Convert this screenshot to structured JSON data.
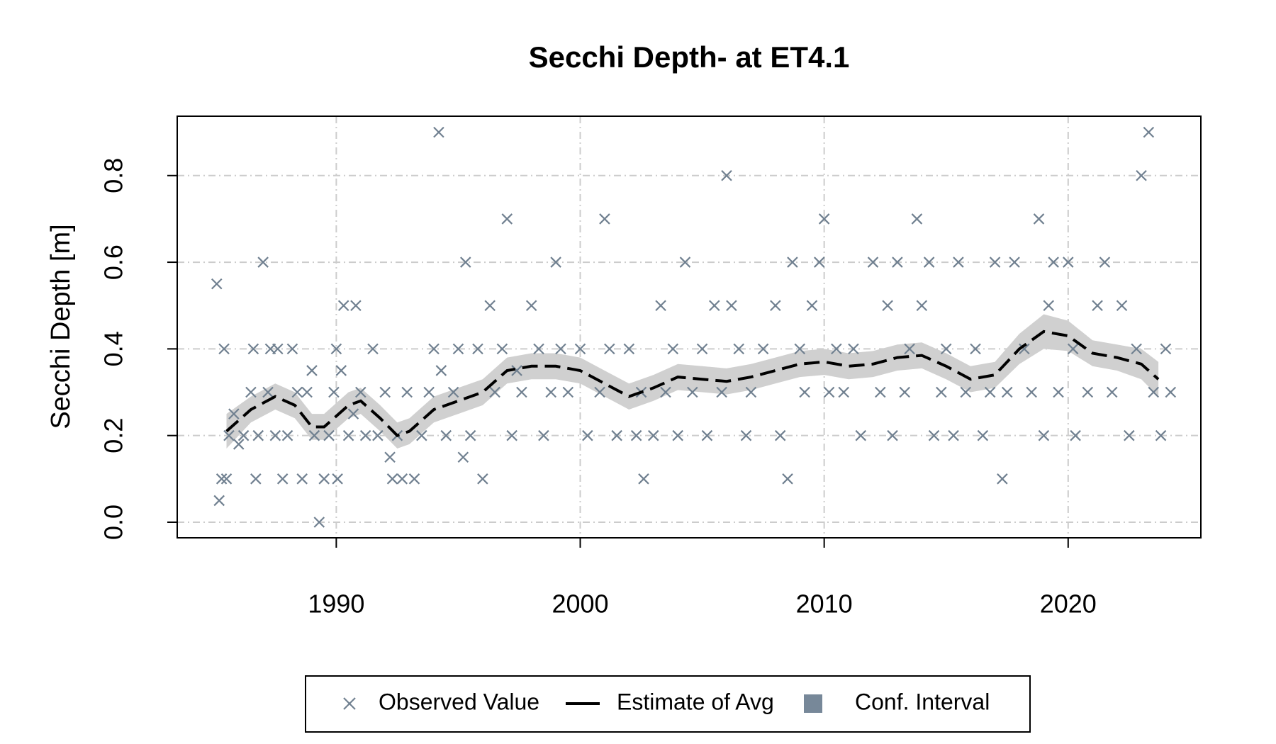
{
  "chart_data": {
    "type": "scatter",
    "title": "Secchi Depth- at ET4.1",
    "y_label": "Secchi Depth [m]",
    "xlim": [
      1983.48,
      2025.44
    ],
    "ylim": [
      -0.036,
      0.937
    ],
    "xticks": [
      1990,
      2000,
      2010,
      2020
    ],
    "yticks": [
      {
        "value": 0,
        "label": "0.0"
      },
      0.2,
      0.4,
      0.6,
      0.8
    ],
    "grid": true,
    "legend_position": "bottom",
    "series": [
      {
        "name": "Observed Value",
        "color": "#708090",
        "x": [
          1985.1,
          1985.2,
          1985.3,
          1985.4,
          1985.5,
          1985.6,
          1985.8,
          1986.0,
          1986.2,
          1986.5,
          1986.6,
          1986.7,
          1986.8,
          1987.0,
          1987.2,
          1987.3,
          1987.5,
          1987.6,
          1987.8,
          1988.0,
          1988.2,
          1988.4,
          1988.6,
          1988.8,
          1989.0,
          1989.1,
          1989.3,
          1989.5,
          1989.7,
          1989.9,
          1990.0,
          1990.05,
          1990.2,
          1990.3,
          1990.5,
          1990.7,
          1990.8,
          1991.0,
          1991.2,
          1991.5,
          1991.7,
          1992.0,
          1992.2,
          1992.3,
          1992.5,
          1992.7,
          1992.9,
          1993.2,
          1993.5,
          1993.8,
          1994.0,
          1994.2,
          1994.3,
          1994.5,
          1994.8,
          1995.0,
          1995.2,
          1995.3,
          1995.5,
          1995.8,
          1996.0,
          1996.3,
          1996.5,
          1996.8,
          1997.0,
          1997.2,
          1997.4,
          1997.6,
          1998.0,
          1998.3,
          1998.5,
          1998.8,
          1999.0,
          1999.2,
          1999.5,
          2000.0,
          2000.3,
          2000.8,
          2001.0,
          2001.2,
          2001.5,
          2002.0,
          2002.3,
          2002.5,
          2002.6,
          2003.0,
          2003.3,
          2003.5,
          2003.8,
          2004.0,
          2004.3,
          2004.6,
          2005.0,
          2005.2,
          2005.5,
          2005.8,
          2006.0,
          2006.2,
          2006.5,
          2006.8,
          2007.0,
          2007.5,
          2008.0,
          2008.2,
          2008.5,
          2008.7,
          2009.0,
          2009.2,
          2009.5,
          2009.8,
          2010.0,
          2010.2,
          2010.5,
          2010.8,
          2011.2,
          2011.5,
          2012.0,
          2012.3,
          2012.6,
          2012.8,
          2013.0,
          2013.3,
          2013.5,
          2013.8,
          2014.0,
          2014.3,
          2014.5,
          2014.8,
          2015.0,
          2015.3,
          2015.5,
          2015.8,
          2016.2,
          2016.5,
          2016.8,
          2017.0,
          2017.3,
          2017.5,
          2017.8,
          2018.2,
          2018.5,
          2018.8,
          2019.0,
          2019.2,
          2019.4,
          2019.6,
          2020.0,
          2020.2,
          2020.3,
          2020.8,
          2021.2,
          2021.5,
          2021.8,
          2022.2,
          2022.5,
          2022.8,
          2023.0,
          2023.3,
          2023.5,
          2023.8,
          2024.0,
          2024.2
        ],
        "values": [
          0.55,
          0.05,
          0.1,
          0.4,
          0.1,
          0.2,
          0.25,
          0.18,
          0.2,
          0.3,
          0.4,
          0.1,
          0.2,
          0.6,
          0.3,
          0.4,
          0.2,
          0.4,
          0.1,
          0.2,
          0.4,
          0.3,
          0.1,
          0.3,
          0.35,
          0.2,
          0.0,
          0.1,
          0.2,
          0.3,
          0.4,
          0.1,
          0.35,
          0.5,
          0.2,
          0.25,
          0.5,
          0.3,
          0.2,
          0.4,
          0.2,
          0.3,
          0.15,
          0.1,
          0.2,
          0.1,
          0.3,
          0.1,
          0.2,
          0.3,
          0.4,
          0.9,
          0.35,
          0.2,
          0.3,
          0.4,
          0.15,
          0.6,
          0.2,
          0.4,
          0.1,
          0.5,
          0.3,
          0.4,
          0.7,
          0.2,
          0.35,
          0.3,
          0.5,
          0.4,
          0.2,
          0.3,
          0.6,
          0.4,
          0.3,
          0.4,
          0.2,
          0.3,
          0.7,
          0.4,
          0.2,
          0.4,
          0.2,
          0.3,
          0.1,
          0.2,
          0.5,
          0.3,
          0.4,
          0.2,
          0.6,
          0.3,
          0.4,
          0.2,
          0.5,
          0.3,
          0.8,
          0.5,
          0.4,
          0.2,
          0.3,
          0.4,
          0.5,
          0.2,
          0.1,
          0.6,
          0.4,
          0.3,
          0.5,
          0.6,
          0.7,
          0.3,
          0.4,
          0.3,
          0.4,
          0.2,
          0.6,
          0.3,
          0.5,
          0.2,
          0.6,
          0.3,
          0.4,
          0.7,
          0.5,
          0.6,
          0.2,
          0.3,
          0.4,
          0.2,
          0.6,
          0.3,
          0.4,
          0.2,
          0.3,
          0.6,
          0.1,
          0.3,
          0.6,
          0.4,
          0.3,
          0.7,
          0.2,
          0.5,
          0.6,
          0.3,
          0.6,
          0.4,
          0.2,
          0.3,
          0.5,
          0.6,
          0.3,
          0.5,
          0.2,
          0.4,
          0.8,
          0.9,
          0.3,
          0.2,
          0.4,
          0.3
        ]
      },
      {
        "name": "Estimate of Avg",
        "color": "#000000",
        "x": [
          1985.5,
          1986.5,
          1987.5,
          1988.3,
          1989.0,
          1989.5,
          1990.5,
          1991.0,
          1991.8,
          1992.5,
          1993.0,
          1994.0,
          1995.0,
          1996.0,
          1997.0,
          1998.0,
          1999.0,
          2000.0,
          2001.0,
          2002.0,
          2003.0,
          2004.0,
          2005.0,
          2006.0,
          2007.0,
          2008.0,
          2009.0,
          2010.0,
          2011.0,
          2012.0,
          2013.0,
          2014.0,
          2015.0,
          2016.0,
          2017.0,
          2018.0,
          2019.0,
          2020.0,
          2021.0,
          2022.0,
          2023.0,
          2023.7
        ],
        "values": [
          0.21,
          0.26,
          0.29,
          0.27,
          0.22,
          0.22,
          0.27,
          0.28,
          0.24,
          0.2,
          0.21,
          0.26,
          0.28,
          0.3,
          0.35,
          0.36,
          0.36,
          0.35,
          0.32,
          0.29,
          0.31,
          0.335,
          0.33,
          0.325,
          0.335,
          0.35,
          0.365,
          0.37,
          0.36,
          0.365,
          0.38,
          0.385,
          0.36,
          0.33,
          0.34,
          0.4,
          0.44,
          0.43,
          0.39,
          0.38,
          0.365,
          0.33
        ]
      },
      {
        "name": "Conf. Interval",
        "color": "#d0d0d0",
        "legend_color": "#778899",
        "x": [
          1985.5,
          1986.5,
          1987.5,
          1988.3,
          1989.0,
          1989.5,
          1990.5,
          1991.0,
          1991.8,
          1992.5,
          1993.0,
          1994.0,
          1995.0,
          1996.0,
          1997.0,
          1998.0,
          1999.0,
          2000.0,
          2001.0,
          2002.0,
          2003.0,
          2004.0,
          2005.0,
          2006.0,
          2007.0,
          2008.0,
          2009.0,
          2010.0,
          2011.0,
          2012.0,
          2013.0,
          2014.0,
          2015.0,
          2016.0,
          2017.0,
          2018.0,
          2019.0,
          2020.0,
          2021.0,
          2022.0,
          2023.0,
          2023.7
        ],
        "lower": [
          0.17,
          0.23,
          0.26,
          0.24,
          0.19,
          0.19,
          0.24,
          0.25,
          0.21,
          0.17,
          0.18,
          0.23,
          0.25,
          0.27,
          0.32,
          0.33,
          0.33,
          0.32,
          0.29,
          0.26,
          0.28,
          0.305,
          0.3,
          0.295,
          0.305,
          0.32,
          0.335,
          0.34,
          0.33,
          0.335,
          0.35,
          0.355,
          0.33,
          0.3,
          0.31,
          0.365,
          0.4,
          0.395,
          0.36,
          0.35,
          0.33,
          0.29
        ],
        "upper": [
          0.25,
          0.29,
          0.32,
          0.3,
          0.25,
          0.25,
          0.3,
          0.31,
          0.27,
          0.23,
          0.24,
          0.29,
          0.31,
          0.33,
          0.38,
          0.39,
          0.39,
          0.38,
          0.35,
          0.32,
          0.34,
          0.365,
          0.36,
          0.355,
          0.365,
          0.38,
          0.395,
          0.4,
          0.39,
          0.395,
          0.41,
          0.415,
          0.39,
          0.36,
          0.37,
          0.435,
          0.48,
          0.465,
          0.42,
          0.41,
          0.4,
          0.37
        ]
      }
    ]
  }
}
